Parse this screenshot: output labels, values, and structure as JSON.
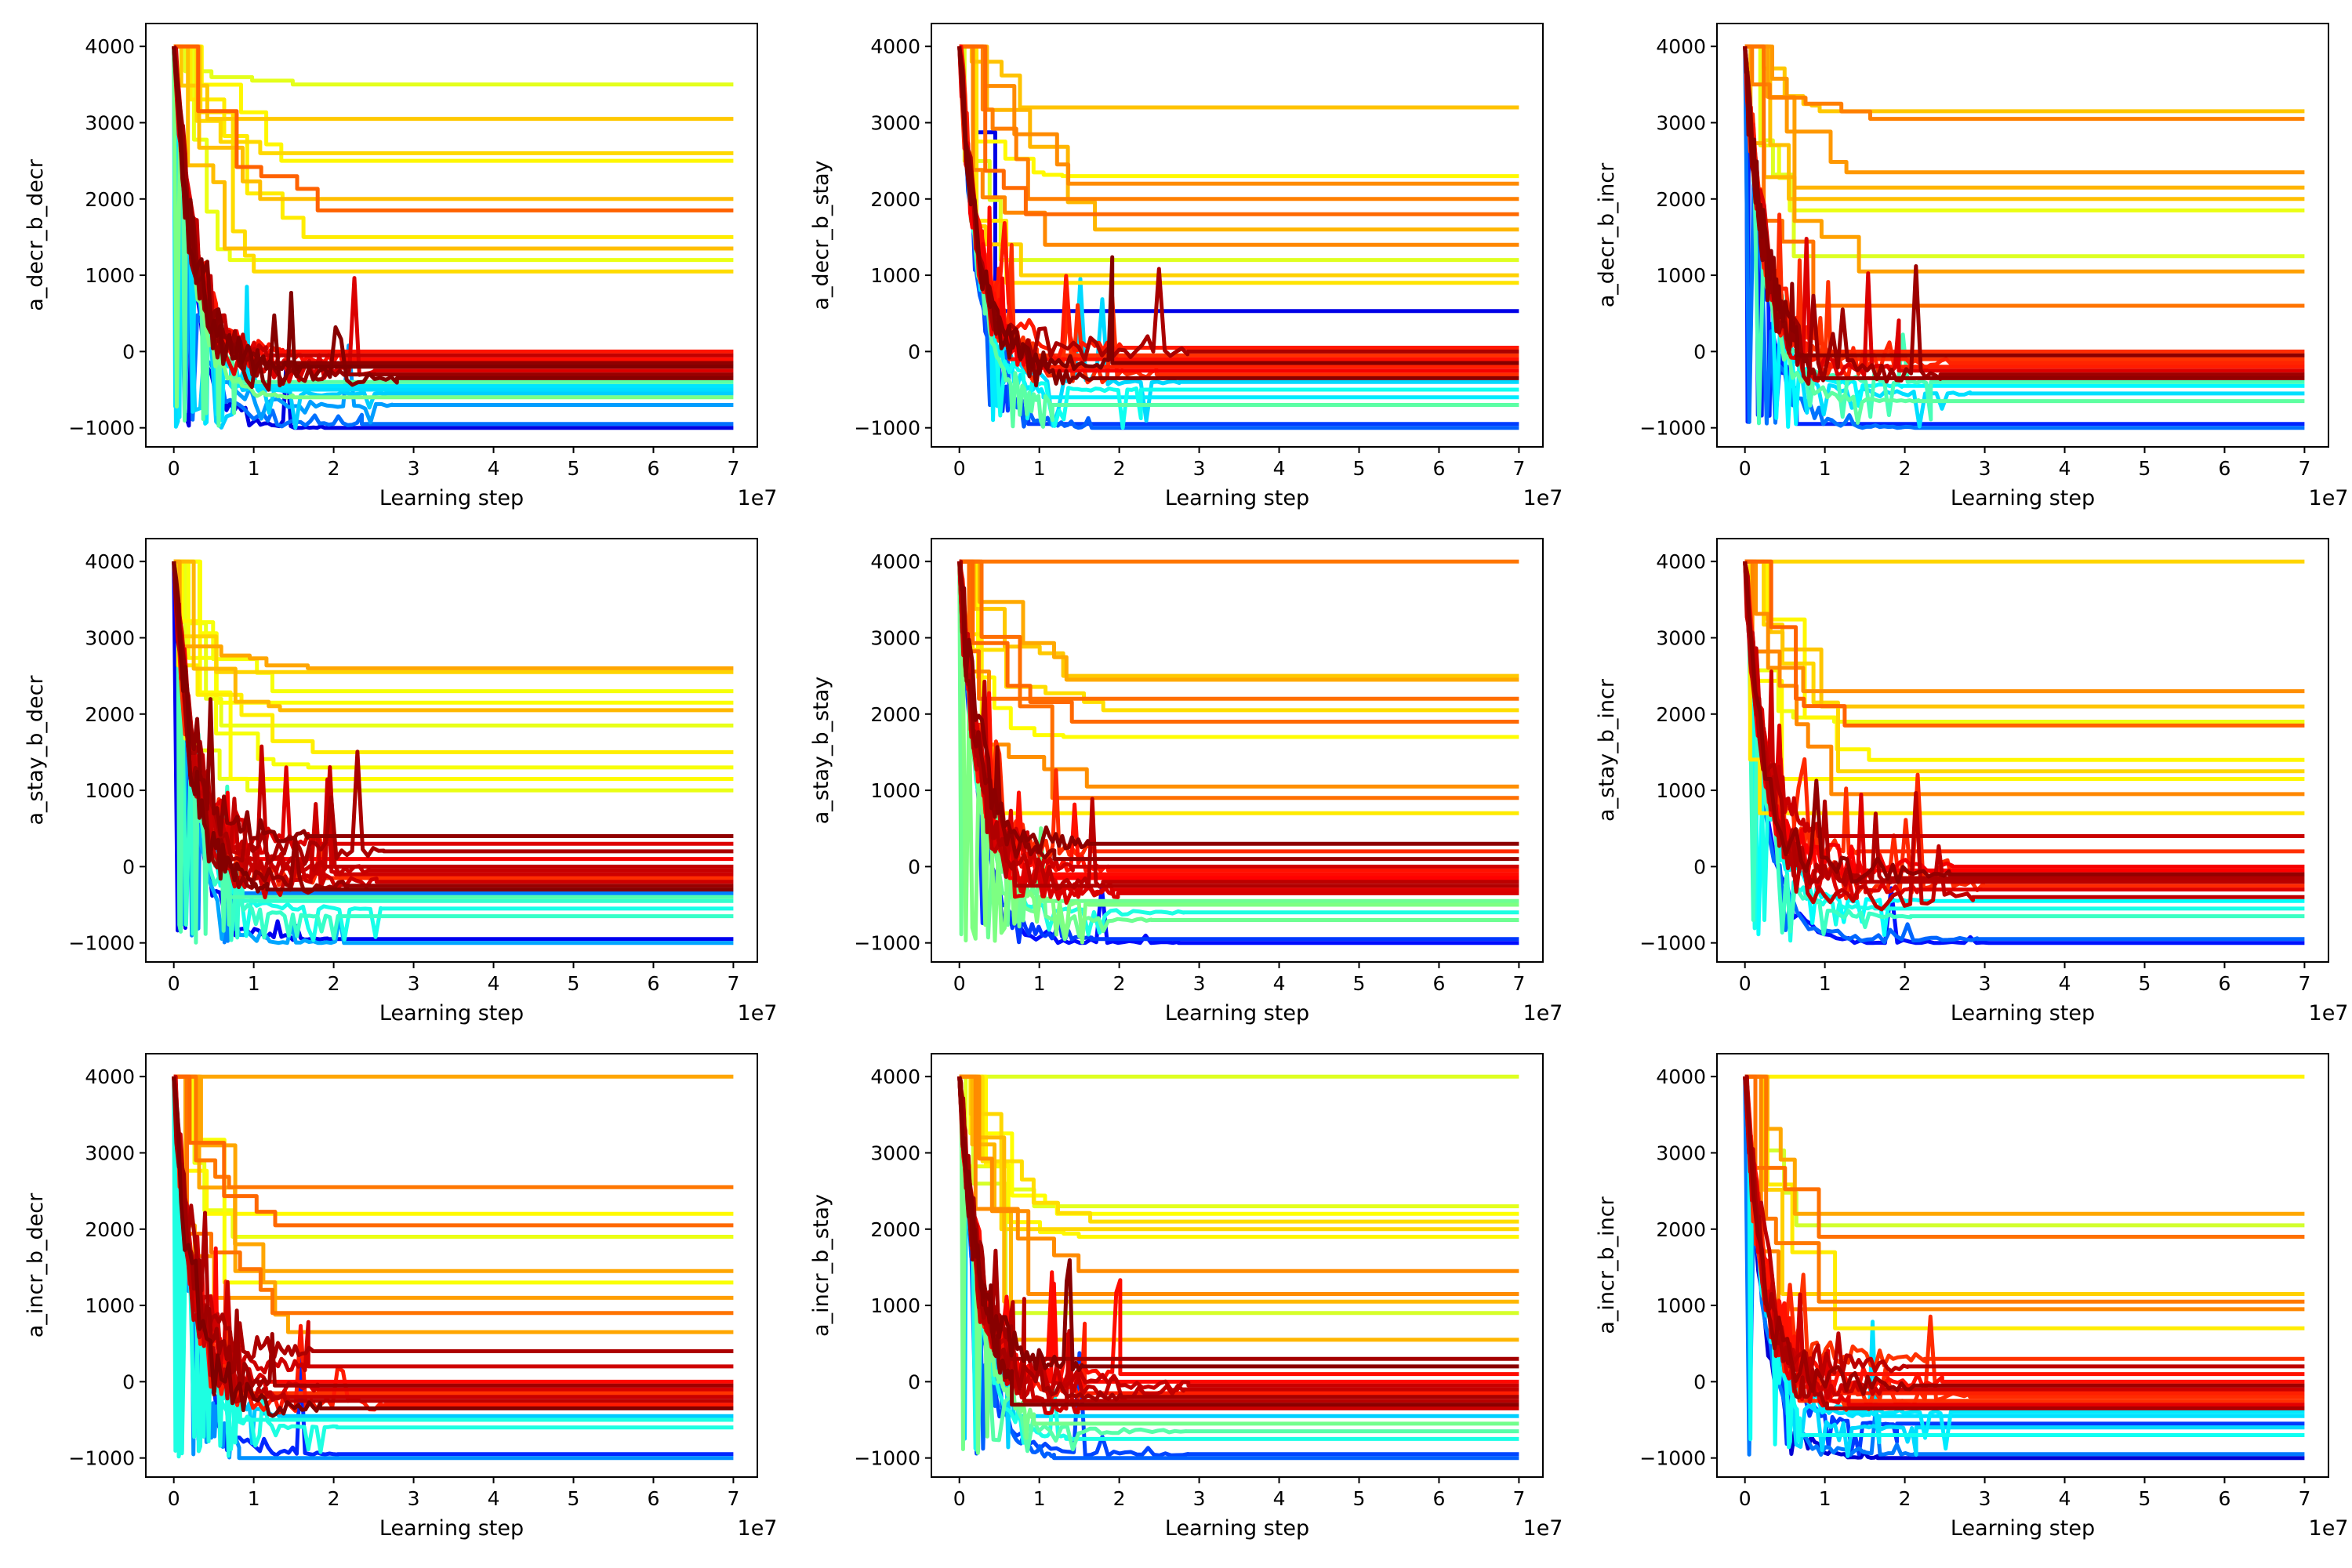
{
  "figure": {
    "xlabel": "Learning step",
    "x_offset_label": "1e7",
    "x_ticks": [
      0,
      1,
      2,
      3,
      4,
      5,
      6,
      7
    ],
    "y_ticks": [
      -1000,
      0,
      1000,
      2000,
      3000,
      4000
    ],
    "colormap": "jet",
    "colormap_stops": [
      "#00007f",
      "#0000ff",
      "#007fff",
      "#00ffff",
      "#7fff7f",
      "#ffff00",
      "#ff7f00",
      "#ff0000",
      "#7f0000"
    ]
  },
  "chart_data": [
    {
      "type": "line",
      "ylabel": "a_decr_b_decr",
      "xlabel": "Learning step",
      "x_unit_multiplier": "1e7",
      "xlim": [
        -0.35,
        7.3
      ],
      "ylim": [
        -1250,
        4300
      ],
      "grid": false,
      "x_ticks": [
        0,
        1,
        2,
        3,
        4,
        5,
        6,
        7
      ],
      "y_ticks": [
        -1000,
        0,
        1000,
        2000,
        3000,
        4000
      ],
      "series_count_approx": 100,
      "start_value": 4000,
      "min_value": -1000,
      "max_value": 4000,
      "final_plateaus": {
        "red_dark": [
          -350,
          -300,
          -250,
          -200,
          -150,
          -100,
          -50,
          0
        ],
        "orange_yellow": [
          1050,
          1200,
          1350,
          1500,
          1850,
          2000,
          2500,
          2600,
          3050,
          3500
        ],
        "cyan_green": [
          -600,
          -550,
          -500,
          -450,
          -400
        ],
        "blue": [
          -1000,
          -950,
          -700
        ]
      },
      "convergence_step_approx": 2
    },
    {
      "type": "line",
      "ylabel": "a_decr_b_stay",
      "xlabel": "Learning step",
      "x_unit_multiplier": "1e7",
      "xlim": [
        -0.35,
        7.3
      ],
      "ylim": [
        -1250,
        4300
      ],
      "grid": false,
      "x_ticks": [
        0,
        1,
        2,
        3,
        4,
        5,
        6,
        7
      ],
      "y_ticks": [
        -1000,
        0,
        1000,
        2000,
        3000,
        4000
      ],
      "series_count_approx": 100,
      "start_value": 4000,
      "min_value": -1000,
      "max_value": 4000,
      "final_plateaus": {
        "red_dark": [
          -350,
          -300,
          -250,
          -200,
          -150,
          -100,
          -50,
          0,
          50
        ],
        "orange_yellow": [
          900,
          1000,
          1200,
          1400,
          1600,
          1800,
          2000,
          2200,
          2300,
          3200
        ],
        "cyan_green": [
          -700,
          -600,
          -500,
          -400
        ],
        "blue": [
          -1000,
          -950,
          530
        ]
      },
      "convergence_step_approx": 2
    },
    {
      "type": "line",
      "ylabel": "a_decr_b_incr",
      "xlabel": "Learning step",
      "x_unit_multiplier": "1e7",
      "xlim": [
        -0.35,
        7.3
      ],
      "ylim": [
        -1250,
        4300
      ],
      "grid": false,
      "x_ticks": [
        0,
        1,
        2,
        3,
        4,
        5,
        6,
        7
      ],
      "y_ticks": [
        -1000,
        0,
        1000,
        2000,
        3000,
        4000
      ],
      "series_count_approx": 100,
      "start_value": 4000,
      "min_value": -1000,
      "max_value": 4000,
      "final_plateaus": {
        "red_dark": [
          -350,
          -300,
          -250,
          -200,
          -150,
          -100,
          -50,
          0
        ],
        "orange_yellow": [
          600,
          1050,
          1250,
          1850,
          2000,
          2150,
          2350,
          3050,
          3150
        ],
        "cyan_green": [
          -650,
          -550,
          -450,
          -400
        ],
        "blue": [
          -1000,
          -950
        ]
      },
      "convergence_step_approx": 2
    },
    {
      "type": "line",
      "ylabel": "a_stay_b_decr",
      "xlabel": "Learning step",
      "x_unit_multiplier": "1e7",
      "xlim": [
        -0.35,
        7.3
      ],
      "ylim": [
        -1250,
        4300
      ],
      "grid": false,
      "x_ticks": [
        0,
        1,
        2,
        3,
        4,
        5,
        6,
        7
      ],
      "y_ticks": [
        -1000,
        0,
        1000,
        2000,
        3000,
        4000
      ],
      "series_count_approx": 100,
      "start_value": 4000,
      "min_value": -1000,
      "max_value": 4000,
      "final_plateaus": {
        "red_dark": [
          -300,
          -250,
          -200,
          -150,
          -100,
          -50,
          0,
          100,
          200,
          300,
          400
        ],
        "orange_yellow": [
          1000,
          1150,
          1300,
          1500,
          1850,
          2050,
          2150,
          2300,
          2550,
          2600
        ],
        "cyan_green": [
          -650,
          -550,
          -450,
          -400
        ],
        "blue": [
          -1000,
          -950,
          -350
        ]
      },
      "convergence_step_approx": 1.8
    },
    {
      "type": "line",
      "ylabel": "a_stay_b_stay",
      "xlabel": "Learning step",
      "x_unit_multiplier": "1e7",
      "xlim": [
        -0.35,
        7.3
      ],
      "ylim": [
        -1250,
        4300
      ],
      "grid": false,
      "x_ticks": [
        0,
        1,
        2,
        3,
        4,
        5,
        6,
        7
      ],
      "y_ticks": [
        -1000,
        0,
        1000,
        2000,
        3000,
        4000
      ],
      "series_count_approx": 100,
      "start_value": 4000,
      "min_value": -1000,
      "max_value": 4000,
      "final_plateaus": {
        "red_dark": [
          -350,
          -300,
          -250,
          -200,
          -150,
          -100,
          -50,
          0,
          100,
          200,
          300
        ],
        "orange_yellow": [
          700,
          900,
          1050,
          1700,
          1900,
          2050,
          2200,
          2450,
          2500,
          4000
        ],
        "cyan_green": [
          -700,
          -600,
          -500,
          -450
        ],
        "blue": [
          -1000,
          -950
        ]
      },
      "convergence_step_approx": 2
    },
    {
      "type": "line",
      "ylabel": "a_stay_b_incr",
      "xlabel": "Learning step",
      "x_unit_multiplier": "1e7",
      "xlim": [
        -0.35,
        7.3
      ],
      "ylim": [
        -1250,
        4300
      ],
      "grid": false,
      "x_ticks": [
        0,
        1,
        2,
        3,
        4,
        5,
        6,
        7
      ],
      "y_ticks": [
        -1000,
        0,
        1000,
        2000,
        3000,
        4000
      ],
      "series_count_approx": 100,
      "start_value": 4000,
      "min_value": -1000,
      "max_value": 4000,
      "final_plateaus": {
        "red_dark": [
          -400,
          -300,
          -250,
          -200,
          -150,
          -100,
          -50,
          0,
          200,
          400
        ],
        "orange_yellow": [
          700,
          950,
          1150,
          1250,
          1400,
          1850,
          1900,
          2100,
          2300,
          4000
        ],
        "cyan_green": [
          -650,
          -550,
          -450
        ],
        "blue": [
          -1000,
          -950
        ]
      },
      "convergence_step_approx": 2.2
    },
    {
      "type": "line",
      "ylabel": "a_incr_b_decr",
      "xlabel": "Learning step",
      "x_unit_multiplier": "1e7",
      "xlim": [
        -0.35,
        7.3
      ],
      "ylim": [
        -1250,
        4300
      ],
      "grid": false,
      "x_ticks": [
        0,
        1,
        2,
        3,
        4,
        5,
        6,
        7
      ],
      "y_ticks": [
        -1000,
        0,
        1000,
        2000,
        3000,
        4000
      ],
      "series_count_approx": 100,
      "start_value": 4000,
      "min_value": -1000,
      "max_value": 4000,
      "final_plateaus": {
        "red_dark": [
          -350,
          -300,
          -250,
          -200,
          -150,
          -100,
          -50,
          0,
          200,
          400
        ],
        "orange_yellow": [
          650,
          900,
          1100,
          1300,
          1450,
          1900,
          2050,
          2200,
          2550,
          4000
        ],
        "cyan_green": [
          -600,
          -500,
          -450
        ],
        "blue": [
          -1000,
          -950
        ]
      },
      "convergence_step_approx": 2
    },
    {
      "type": "line",
      "ylabel": "a_incr_b_stay",
      "xlabel": "Learning step",
      "x_unit_multiplier": "1e7",
      "xlim": [
        -0.35,
        7.3
      ],
      "ylim": [
        -1250,
        4300
      ],
      "grid": false,
      "x_ticks": [
        0,
        1,
        2,
        3,
        4,
        5,
        6,
        7
      ],
      "y_ticks": [
        -1000,
        0,
        1000,
        2000,
        3000,
        4000
      ],
      "series_count_approx": 100,
      "start_value": 4000,
      "min_value": -1000,
      "max_value": 4000,
      "final_plateaus": {
        "red_dark": [
          -350,
          -300,
          -250,
          -200,
          -150,
          -100,
          -50,
          0,
          100,
          200,
          300
        ],
        "orange_yellow": [
          550,
          900,
          1050,
          1150,
          1450,
          1900,
          2000,
          2100,
          2200,
          2300,
          4000
        ],
        "cyan_green": [
          -750,
          -650,
          -550,
          -450
        ],
        "blue": [
          -1000,
          -950
        ]
      },
      "convergence_step_approx": 2
    },
    {
      "type": "line",
      "ylabel": "a_incr_b_incr",
      "xlabel": "Learning step",
      "x_unit_multiplier": "1e7",
      "xlim": [
        -0.35,
        7.3
      ],
      "ylim": [
        -1250,
        4300
      ],
      "grid": false,
      "x_ticks": [
        0,
        1,
        2,
        3,
        4,
        5,
        6,
        7
      ],
      "y_ticks": [
        -1000,
        0,
        1000,
        2000,
        3000,
        4000
      ],
      "series_count_approx": 100,
      "start_value": 4000,
      "min_value": -1000,
      "max_value": 4000,
      "final_plateaus": {
        "red_dark": [
          -350,
          -300,
          -250,
          -200,
          -150,
          -100,
          -50,
          0,
          100,
          200,
          300
        ],
        "orange_yellow": [
          700,
          950,
          1050,
          1150,
          1900,
          2050,
          2200,
          4000
        ],
        "cyan_green": [
          -700,
          -600,
          -450,
          -400
        ],
        "blue": [
          -1000,
          -950,
          -550
        ]
      },
      "convergence_step_approx": 2
    }
  ]
}
